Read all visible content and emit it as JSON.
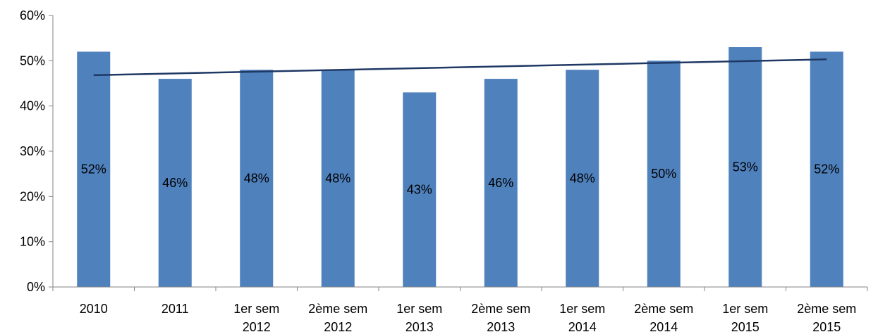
{
  "chart_data": {
    "type": "bar",
    "categories": [
      [
        "2010"
      ],
      [
        "2011"
      ],
      [
        "1er sem",
        "2012"
      ],
      [
        "2ème sem",
        "2012"
      ],
      [
        "1er sem",
        "2013"
      ],
      [
        "2ème sem",
        "2013"
      ],
      [
        "1er sem",
        "2014"
      ],
      [
        "2ème sem",
        "2014"
      ],
      [
        "1er sem",
        "2015"
      ],
      [
        "2ème sem",
        "2015"
      ]
    ],
    "values": [
      52,
      46,
      48,
      48,
      43,
      46,
      48,
      50,
      53,
      52
    ],
    "data_labels": [
      "52%",
      "46%",
      "48%",
      "48%",
      "43%",
      "46%",
      "48%",
      "50%",
      "53%",
      "52%"
    ],
    "ylim": [
      0,
      60
    ],
    "y_ticks": [
      0,
      10,
      20,
      30,
      40,
      50,
      60
    ],
    "y_tick_labels": [
      "0%",
      "10%",
      "20%",
      "30%",
      "40%",
      "50%",
      "60%"
    ],
    "trendline": {
      "type": "linear",
      "start": 46.8,
      "end": 50.3
    },
    "grid": false,
    "legend": "none",
    "colors": {
      "bar": "#4F81BD",
      "trend": "#1F3864",
      "axis": "#868686"
    }
  }
}
